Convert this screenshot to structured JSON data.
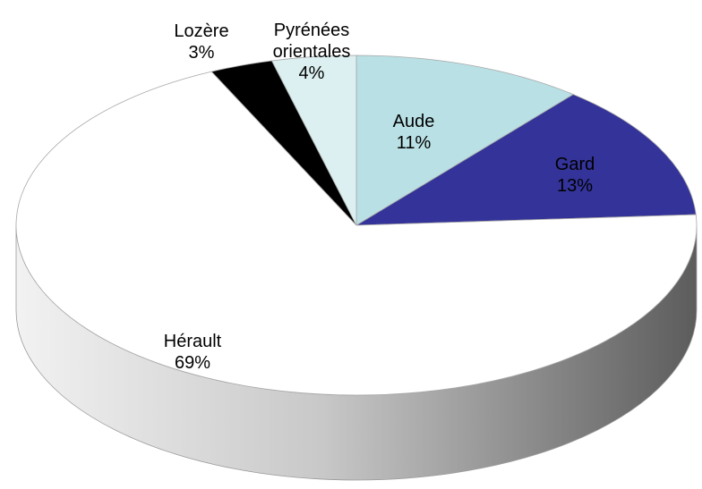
{
  "chart_data": {
    "type": "pie",
    "categories": [
      "Aude",
      "Gard",
      "Hérault",
      "Lozère",
      "Pyrénées orientales"
    ],
    "values": [
      11,
      13,
      69,
      3,
      4
    ],
    "value_labels": [
      "11%",
      "13%",
      "69%",
      "3%",
      "4%"
    ],
    "colors": [
      "#b9e0e4",
      "#333399",
      "#ffffff",
      "#000000",
      "#dcf0f1"
    ]
  }
}
